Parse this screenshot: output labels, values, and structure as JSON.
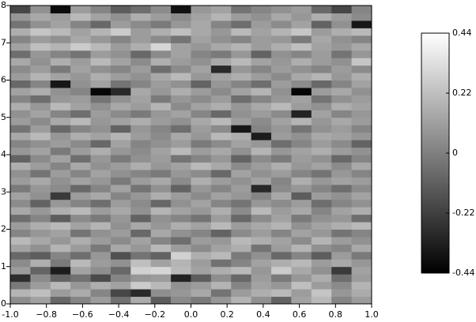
{
  "chart_data": {
    "type": "heatmap",
    "xlim": [
      -1,
      1
    ],
    "ylim": [
      0,
      8
    ],
    "xticks": [
      {
        "value": -1,
        "label": "-1.0"
      },
      {
        "value": -0.8,
        "label": "−0.8"
      },
      {
        "value": -0.6,
        "label": "−0.6"
      },
      {
        "value": -0.4,
        "label": "−0.4"
      },
      {
        "value": -0.2,
        "label": "−0.2"
      },
      {
        "value": 0,
        "label": "0.0"
      },
      {
        "value": 0.2,
        "label": "0.2"
      },
      {
        "value": 0.4,
        "label": "0.4"
      },
      {
        "value": 0.6,
        "label": "0.6"
      },
      {
        "value": 0.8,
        "label": "0.8"
      },
      {
        "value": 1,
        "label": "1.0"
      }
    ],
    "yticks": [
      0,
      1,
      2,
      3,
      4,
      5,
      6,
      7,
      8
    ],
    "clim": [
      -0.44,
      0.44
    ],
    "cticks": [
      -0.44,
      -0.22,
      0,
      0.22,
      0.44
    ],
    "z": [
      [
        0.05,
        0.12,
        -0.08,
        0.02,
        0.1,
        -0.05,
        0.15,
        -0.12,
        0.04,
        -0.02,
        0.08,
        0.18,
        0.06,
        -0.1,
        0.12,
        0.2,
        0.02,
        0.1
      ],
      [
        0.18,
        0.22,
        0.1,
        0.15,
        0.02,
        -0.2,
        -0.3,
        0.05,
        0.08,
        0.14,
        -0.04,
        0.1,
        0.16,
        0.2,
        0.1,
        0.24,
        0.08,
        0.15
      ],
      [
        -0.02,
        0.1,
        0.2,
        0.08,
        0.16,
        0.12,
        0.26,
        0.2,
        0.06,
        0.1,
        0.18,
        0.02,
        0.12,
        0.08,
        0.22,
        0.1,
        0.04,
        0.18
      ],
      [
        -0.28,
        0.04,
        -0.1,
        -0.05,
        -0.18,
        0.02,
        0.08,
        0.1,
        -0.32,
        -0.12,
        0.05,
        -0.08,
        0.1,
        -0.02,
        0.08,
        0.16,
        -0.06,
        0.1
      ],
      [
        0.1,
        -0.1,
        -0.34,
        0.12,
        0.05,
        -0.08,
        0.28,
        0.3,
        0.2,
        0.12,
        0.16,
        0.2,
        0.08,
        0.26,
        0.14,
        0.06,
        -0.24,
        0.12
      ],
      [
        0.04,
        0.16,
        -0.02,
        0.2,
        0.1,
        0.06,
        0.22,
        0.12,
        0.18,
        0.1,
        -0.05,
        0.02,
        0.12,
        0.16,
        0.2,
        0.1,
        0.14,
        0.08
      ],
      [
        -0.08,
        -0.12,
        0.02,
        -0.06,
        0.08,
        -0.16,
        -0.04,
        -0.1,
        0.28,
        0.16,
        0.2,
        -0.02,
        0.06,
        -0.08,
        0.02,
        -0.12,
        0.1,
        -0.02
      ],
      [
        0.12,
        0.06,
        0.18,
        0.1,
        -0.02,
        0.14,
        0.08,
        0.2,
        0.1,
        0.04,
        0.12,
        0.16,
        -0.04,
        0.1,
        0.18,
        0.06,
        0.02,
        0.14
      ],
      [
        0.2,
        0.14,
        0.08,
        0.16,
        0.1,
        0.04,
        0.12,
        0.02,
        -0.06,
        0.1,
        0.08,
        0.2,
        0.16,
        0.12,
        0.04,
        0.18,
        0.1,
        0.06
      ],
      [
        0.02,
        0.08,
        0.12,
        -0.04,
        0.06,
        0.1,
        -0.08,
        0.14,
        0.06,
        0.02,
        -0.1,
        0.04,
        0.1,
        0.02,
        0.12,
        0.08,
        -0.04,
        0.02
      ],
      [
        0.1,
        0.16,
        0.2,
        0.12,
        0.18,
        0.06,
        0.14,
        0.08,
        0.16,
        0.12,
        0.2,
        0.1,
        0.14,
        0.18,
        0.06,
        0.12,
        0.16,
        0.2
      ],
      [
        -0.06,
        0.02,
        -0.12,
        0.04,
        -0.02,
        0.08,
        -0.1,
        0.06,
        0.02,
        -0.04,
        0.1,
        -0.08,
        0.04,
        0.12,
        -0.02,
        0.06,
        0.08,
        -0.06
      ],
      [
        0.14,
        0.08,
        0.16,
        0.2,
        0.1,
        0.14,
        0.06,
        0.18,
        0.12,
        0.08,
        0.16,
        0.04,
        0.2,
        0.1,
        0.14,
        0.02,
        0.12,
        0.16
      ],
      [
        0.04,
        -0.1,
        0.08,
        0.02,
        -0.06,
        0.1,
        0.04,
        -0.08,
        0.06,
        0.12,
        0.02,
        -0.04,
        0.08,
        0.04,
        0.1,
        -0.06,
        0.02,
        0.06
      ],
      [
        0.12,
        0.06,
        -0.24,
        0.1,
        0.14,
        0.02,
        0.08,
        0.16,
        0.1,
        0.04,
        0.12,
        0.08,
        0.02,
        0.14,
        -0.12,
        0.1,
        0.06,
        0.12
      ],
      [
        -0.02,
        0.08,
        0.04,
        -0.08,
        0.02,
        0.12,
        -0.04,
        0.06,
        -0.1,
        0.08,
        0.02,
        0.1,
        -0.3,
        0.04,
        0.08,
        0.02,
        -0.06,
        0.04
      ],
      [
        0.1,
        0.14,
        0.06,
        0.12,
        0.08,
        -0.02,
        0.1,
        0.14,
        0.04,
        0.16,
        0.1,
        0.06,
        0.12,
        0.02,
        0.16,
        0.08,
        0.12,
        0.1
      ],
      [
        0.06,
        -0.04,
        0.1,
        0.02,
        0.12,
        0.06,
        0.02,
        -0.02,
        0.08,
        0.04,
        -0.08,
        0.12,
        0.06,
        0.1,
        0.02,
        -0.04,
        0.08,
        0.02
      ],
      [
        0.16,
        0.1,
        0.02,
        0.14,
        0.06,
        0.1,
        0.16,
        0.08,
        0.12,
        0.2,
        0.14,
        0.04,
        0.1,
        0.16,
        0.08,
        0.12,
        0.04,
        0.14
      ],
      [
        -0.1,
        0.04,
        0.12,
        -0.06,
        0.08,
        -0.02,
        0.06,
        0.1,
        -0.04,
        0.02,
        0.08,
        -0.1,
        0.04,
        -0.02,
        0.1,
        0.06,
        -0.08,
        0.02
      ],
      [
        0.08,
        0.12,
        -0.02,
        0.1,
        0.16,
        0.08,
        0.04,
        0.12,
        0.2,
        0.1,
        0.14,
        0.06,
        0.18,
        0.08,
        0.12,
        0.16,
        0.1,
        0.06
      ],
      [
        0.02,
        0.06,
        0.1,
        0.04,
        -0.08,
        0.12,
        0.02,
        0.06,
        0.1,
        -0.02,
        0.04,
        0.12,
        0.08,
        -0.06,
        0.02,
        0.1,
        0.04,
        -0.1
      ],
      [
        0.14,
        0.2,
        0.08,
        0.16,
        0.12,
        0.18,
        0.1,
        0.04,
        0.14,
        0.08,
        0.2,
        0.16,
        -0.34,
        0.1,
        0.06,
        0.14,
        0.12,
        0.08
      ],
      [
        -0.04,
        0.1,
        -0.08,
        0.02,
        0.06,
        -0.1,
        0.08,
        0.02,
        -0.06,
        0.1,
        0.04,
        -0.36,
        0.02,
        0.08,
        -0.04,
        0.06,
        0.1,
        0.02
      ],
      [
        0.1,
        0.04,
        0.14,
        0.2,
        0.08,
        0.12,
        0.16,
        0.1,
        0.06,
        0.14,
        0.2,
        0.1,
        0.04,
        0.12,
        0.18,
        0.08,
        0.14,
        0.1
      ],
      [
        0.06,
        0.12,
        0.02,
        -0.06,
        0.1,
        0.04,
        -0.02,
        0.08,
        0.12,
        0.02,
        -0.08,
        0.06,
        0.1,
        0.04,
        -0.32,
        0.12,
        0.02,
        0.08
      ],
      [
        0.16,
        0.08,
        0.2,
        0.12,
        0.06,
        0.14,
        0.1,
        0.18,
        0.04,
        0.12,
        0.16,
        0.08,
        0.14,
        0.2,
        0.1,
        0.06,
        0.16,
        0.12
      ],
      [
        0.02,
        -0.06,
        0.08,
        0.1,
        -0.04,
        0.06,
        0.12,
        -0.02,
        0.08,
        0.04,
        0.1,
        -0.06,
        0.02,
        0.08,
        0.12,
        -0.04,
        0.06,
        0.1
      ],
      [
        0.12,
        0.16,
        0.06,
        0.02,
        -0.42,
        -0.3,
        0.14,
        0.08,
        0.16,
        0.1,
        0.04,
        0.12,
        0.18,
        0.06,
        -0.42,
        0.1,
        0.14,
        0.06
      ],
      [
        -0.08,
        0.02,
        -0.36,
        0.06,
        0.12,
        -0.04,
        0.02,
        0.1,
        0.06,
        -0.1,
        0.08,
        0.02,
        -0.06,
        0.1,
        0.04,
        -0.08,
        0.02,
        0.12
      ],
      [
        0.1,
        0.18,
        0.12,
        0.08,
        0.16,
        0.1,
        0.06,
        0.14,
        0.2,
        0.08,
        0.12,
        0.16,
        0.1,
        0.04,
        0.14,
        0.18,
        0.08,
        0.16
      ],
      [
        0.04,
        0.1,
        -0.02,
        0.12,
        0.06,
        0.02,
        0.1,
        -0.06,
        0.04,
        0.12,
        -0.3,
        0.08,
        0.02,
        0.1,
        0.06,
        0.02,
        0.1,
        0.04
      ],
      [
        0.14,
        0.06,
        0.16,
        0.1,
        0.2,
        0.12,
        0.04,
        0.16,
        0.1,
        0.06,
        0.14,
        0.2,
        0.12,
        0.08,
        0.16,
        0.1,
        0.06,
        0.24
      ],
      [
        -0.06,
        0.08,
        0.02,
        -0.04,
        0.1,
        0.06,
        -0.08,
        0.04,
        0.12,
        0.02,
        -0.02,
        0.08,
        -0.1,
        0.06,
        0.02,
        0.1,
        -0.04,
        0.08
      ],
      [
        0.12,
        0.22,
        0.18,
        0.26,
        0.2,
        0.1,
        0.16,
        0.3,
        0.12,
        0.08,
        0.14,
        0.18,
        0.1,
        0.16,
        0.22,
        0.12,
        0.08,
        0.14
      ],
      [
        0.02,
        0.1,
        0.06,
        0.14,
        0.08,
        0.02,
        0.1,
        0.04,
        -0.04,
        0.12,
        0.06,
        0.02,
        0.1,
        0.08,
        -0.02,
        0.14,
        0.06,
        0.02
      ],
      [
        0.16,
        0.24,
        0.2,
        0.12,
        0.18,
        0.26,
        0.1,
        0.16,
        0.22,
        0.14,
        0.08,
        0.2,
        0.12,
        0.18,
        0.24,
        0.1,
        0.16,
        0.2
      ],
      [
        -0.04,
        0.06,
        0.12,
        0.02,
        -0.08,
        0.1,
        0.04,
        -0.02,
        0.08,
        0.14,
        0.02,
        -0.06,
        0.1,
        0.04,
        0.12,
        -0.1,
        0.06,
        -0.36
      ],
      [
        0.08,
        0.14,
        0.1,
        0.2,
        0.12,
        0.06,
        0.16,
        0.1,
        0.04,
        0.12,
        0.18,
        0.1,
        0.06,
        0.14,
        0.08,
        0.16,
        0.1,
        0.04
      ],
      [
        -0.2,
        0.06,
        -0.4,
        0.1,
        0.02,
        -0.12,
        -0.06,
        0.04,
        -0.38,
        0.08,
        0.12,
        -0.04,
        0.02,
        0.06,
        0.1,
        -0.08,
        -0.2,
        0.02
      ]
    ]
  }
}
